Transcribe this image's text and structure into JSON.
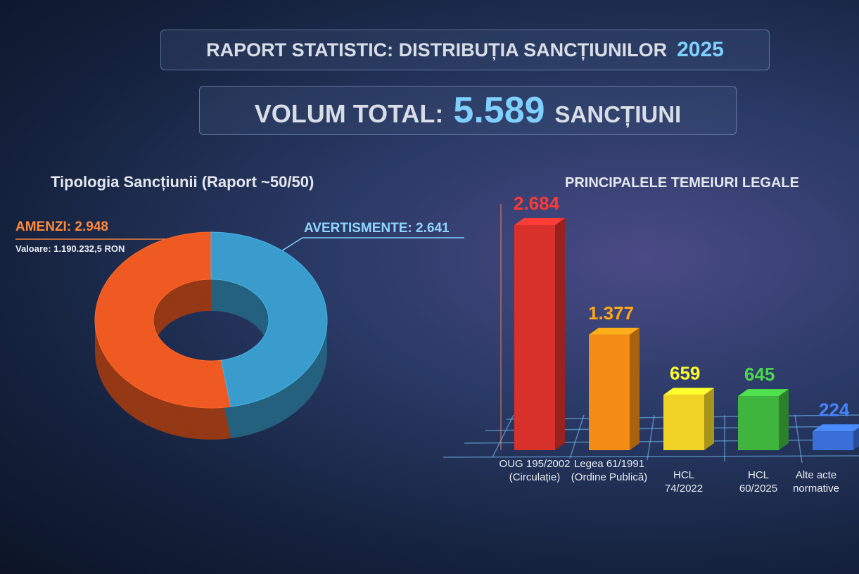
{
  "header": {
    "title": "RAPORT STATISTIC: DISTRIBUȚIA SANCȚIUNILOR",
    "year": "2025",
    "total_label": "VOLUM TOTAL:",
    "total_value": "5.589",
    "total_unit": "SANCȚIUNI"
  },
  "chart_data": [
    {
      "type": "pie",
      "title": "Tipologia Sancțiunii (Raport ~50/50)",
      "labels": [
        "AMENZI: 2.948",
        "AVERTISMENTE: 2.641"
      ],
      "values": [
        2948,
        2641
      ],
      "colors": [
        "#ef5a22",
        "#3a9ccc"
      ],
      "annotation": "Valoare: 1.190.232,5 RON"
    },
    {
      "type": "bar",
      "title": "PRINCIPALELE TEMEIURI LEGALE",
      "categories": [
        "OUG 195/2002\n(Circulație)",
        "Legea 61/1991\n(Ordine Publică)",
        "HCL\n74/2022",
        "HCL\n60/2025",
        "Alte acte\nnormative"
      ],
      "values": [
        2684,
        1377,
        659,
        645,
        224
      ],
      "value_labels": [
        "2.684",
        "1.377",
        "659",
        "645",
        "224"
      ],
      "colors": [
        "#d8302b",
        "#f28c14",
        "#f1d325",
        "#3fb53d",
        "#3b6fd8"
      ]
    }
  ]
}
